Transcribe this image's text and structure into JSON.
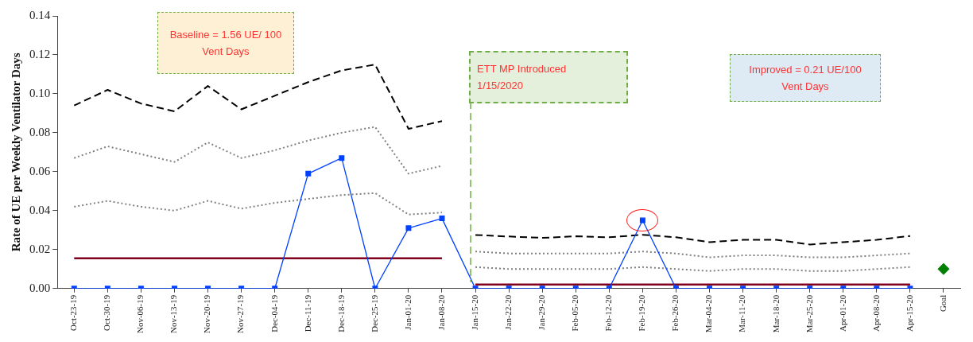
{
  "chart_data": {
    "type": "line",
    "ylabel": "Rate of UE per Weekly Ventilator Days",
    "categories": [
      "Oct-23-19",
      "Oct-30-19",
      "Nov-06-19",
      "Nov-13-19",
      "Nov-20-19",
      "Nov-27-19",
      "Dec-04-19",
      "Dec-11-19",
      "Dec-18-19",
      "Dec-25-19",
      "Jan-01-20",
      "Jan-08-20",
      "Jan-15-20",
      "Jan-22-20",
      "Jan-29-20",
      "Feb-05-20",
      "Feb-12-20",
      "Feb-19-20",
      "Feb-26-20",
      "Mar-04-20",
      "Mar-11-20",
      "Mar-18-20",
      "Mar-25-20",
      "Apr-01-20",
      "Apr-08-20",
      "Apr-15-20",
      "Goal"
    ],
    "series": [
      {
        "color": "#0040ff",
        "marker": "square",
        "line_style": "solid",
        "values": [
          0,
          0,
          0,
          0,
          0,
          0,
          0,
          0.059,
          0.067,
          0,
          0.031,
          0.036,
          0,
          0,
          0,
          0,
          0,
          0.035,
          0,
          0,
          0,
          0,
          0,
          0,
          0,
          0,
          null
        ]
      },
      {
        "color": "#000000",
        "marker": "none",
        "line_style": "dashed",
        "values": [
          0.094,
          0.102,
          0.095,
          0.091,
          0.104,
          0.092,
          0.099,
          0.106,
          0.112,
          0.115,
          0.082,
          0.086,
          null,
          null,
          null,
          null,
          null,
          null,
          null,
          null,
          null,
          null,
          null,
          null,
          null,
          null,
          null
        ]
      },
      {
        "color": "#000000",
        "marker": "none",
        "line_style": "dashed",
        "values": [
          null,
          null,
          null,
          null,
          null,
          null,
          null,
          null,
          null,
          null,
          null,
          null,
          0.0275,
          0.0267,
          0.026,
          0.0268,
          0.0263,
          0.0276,
          0.0263,
          0.0238,
          0.025,
          0.025,
          0.0226,
          0.0238,
          0.025,
          0.027,
          null
        ]
      },
      {
        "color": "#808080",
        "marker": "none",
        "line_style": "dotted",
        "values": [
          0.067,
          0.073,
          0.069,
          0.065,
          0.075,
          0.067,
          0.071,
          0.076,
          0.08,
          0.083,
          0.059,
          0.063,
          null,
          null,
          null,
          null,
          null,
          null,
          null,
          null,
          null,
          null,
          null,
          null,
          null,
          null,
          null
        ]
      },
      {
        "color": "#808080",
        "marker": "none",
        "line_style": "dotted",
        "values": [
          null,
          null,
          null,
          null,
          null,
          null,
          null,
          null,
          null,
          null,
          null,
          null,
          0.019,
          0.018,
          0.018,
          0.018,
          0.018,
          0.019,
          0.018,
          0.016,
          0.017,
          0.017,
          0.016,
          0.016,
          0.017,
          0.018,
          null
        ]
      },
      {
        "color": "#808080",
        "marker": "none",
        "line_style": "dotted",
        "values": [
          0.042,
          0.045,
          0.042,
          0.04,
          0.045,
          0.041,
          0.044,
          0.046,
          0.048,
          0.049,
          0.038,
          0.039,
          null,
          null,
          null,
          null,
          null,
          null,
          null,
          null,
          null,
          null,
          null,
          null,
          null,
          null,
          null
        ]
      },
      {
        "color": "#808080",
        "marker": "none",
        "line_style": "dotted",
        "values": [
          null,
          null,
          null,
          null,
          null,
          null,
          null,
          null,
          null,
          null,
          null,
          null,
          0.011,
          0.01,
          0.01,
          0.01,
          0.01,
          0.011,
          0.01,
          0.009,
          0.01,
          0.01,
          0.009,
          0.009,
          0.01,
          0.011,
          null
        ]
      },
      {
        "color": "#800020",
        "marker": "none",
        "line_style": "solid",
        "values": [
          0.0155,
          0.0155,
          0.0155,
          0.0155,
          0.0155,
          0.0155,
          0.0155,
          0.0155,
          0.0155,
          0.0155,
          0.0155,
          0.0155,
          null,
          null,
          null,
          null,
          null,
          null,
          null,
          null,
          null,
          null,
          null,
          null,
          null,
          null,
          null
        ]
      },
      {
        "color": "#800020",
        "marker": "none",
        "line_style": "solid",
        "values": [
          null,
          null,
          null,
          null,
          null,
          null,
          null,
          null,
          null,
          null,
          null,
          null,
          0.002,
          0.002,
          0.002,
          0.002,
          0.002,
          0.002,
          0.002,
          0.002,
          0.002,
          0.002,
          0.002,
          0.002,
          0.002,
          0.002,
          null
        ]
      },
      {
        "type": "scatter",
        "color": "#008000",
        "marker": "diamond",
        "values": [
          null,
          null,
          null,
          null,
          null,
          null,
          null,
          null,
          null,
          null,
          null,
          null,
          null,
          null,
          null,
          null,
          null,
          null,
          null,
          null,
          null,
          null,
          null,
          null,
          null,
          null,
          0.01
        ]
      }
    ],
    "ylim": [
      0,
      0.14
    ],
    "yticks": [
      {
        "value": 0,
        "label": "0.00"
      },
      0.02,
      0.04,
      0.06,
      0.08,
      {
        "value": 0.1,
        "label": "0.10"
      },
      0.12,
      0.14
    ],
    "ref_lines": [
      {
        "axis": "x",
        "value": "Jan-15-20",
        "label": "ETT MP Introduced 1/15/2020",
        "color": "#70ad47",
        "line_style": "dashed"
      }
    ],
    "annotations": [
      "Baseline  = 1.56 UE/ 100  Vent Days",
      "Improved = 0.21 UE/100 Vent Days"
    ],
    "grid": false,
    "legend": false
  }
}
